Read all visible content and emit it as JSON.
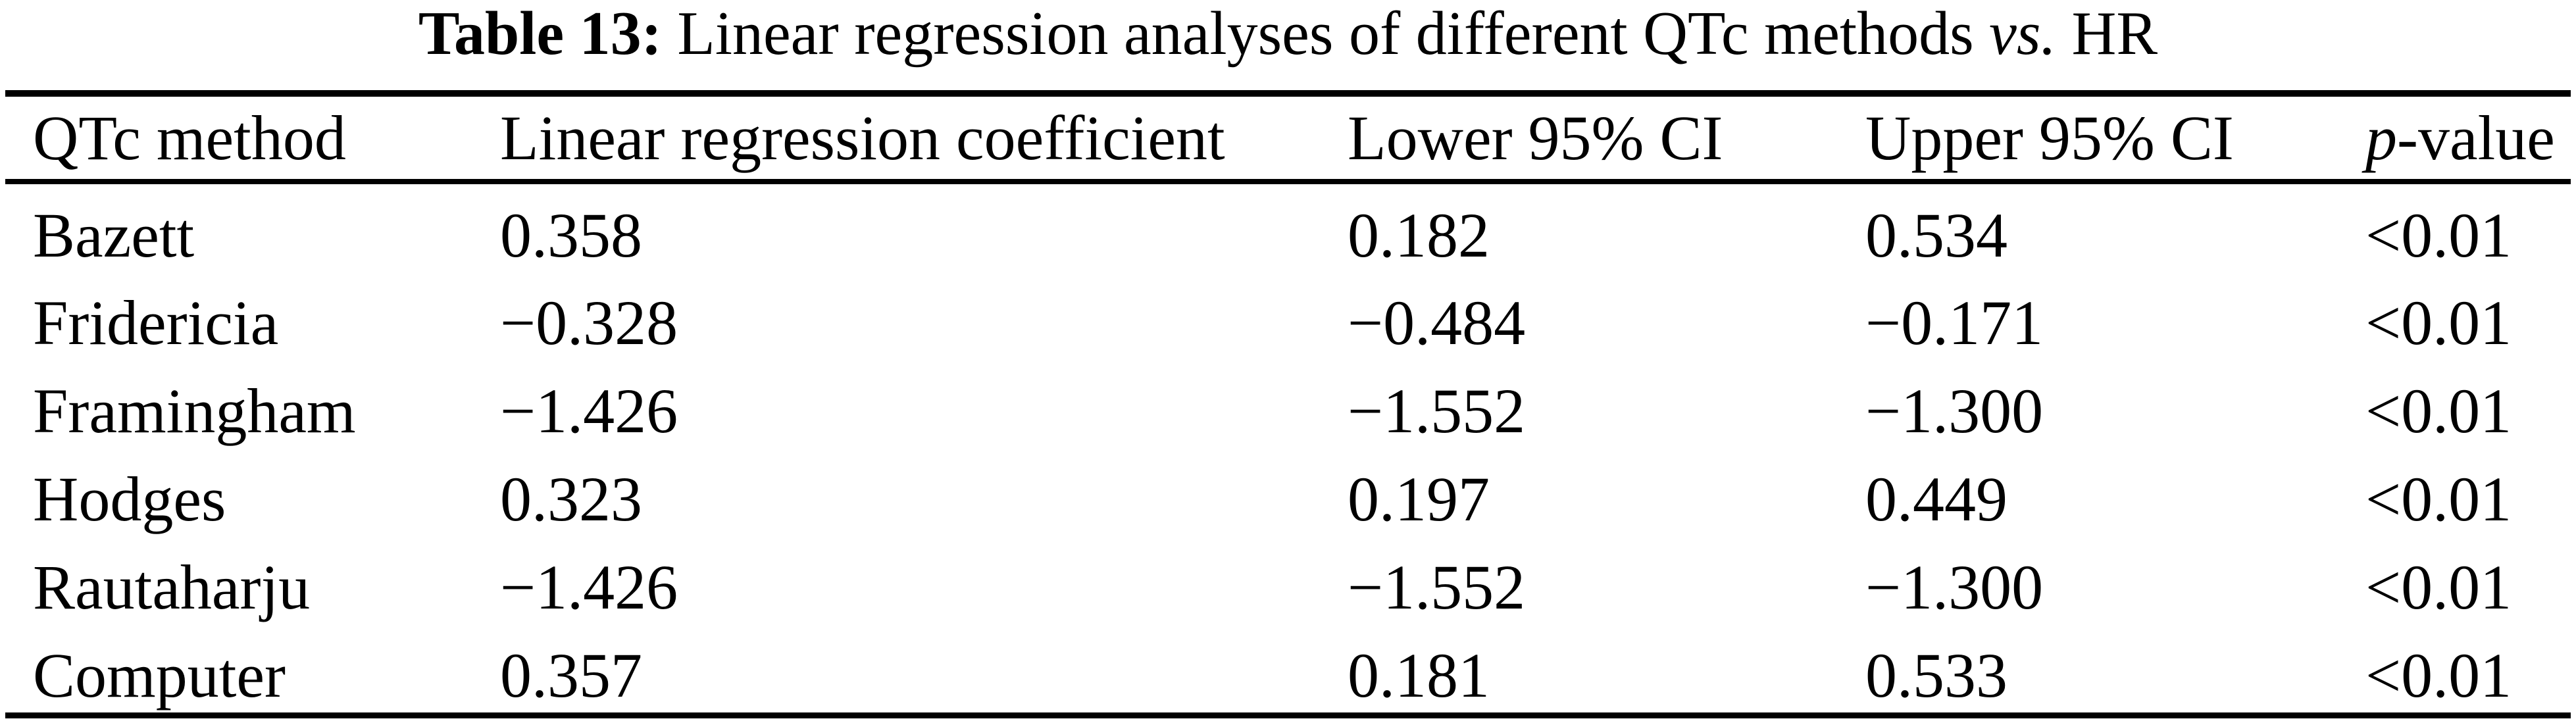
{
  "caption": {
    "label": "Table 13:",
    "text": " Linear regression analyses of different QTc methods ",
    "italic": "vs.",
    "tail": " HR"
  },
  "table": {
    "headers": {
      "method": "QTc method",
      "coefficient": "Linear regression coefficient",
      "lower_ci": "Lower 95% CI",
      "upper_ci": "Upper 95% CI",
      "p_italic": "p",
      "p_rest": "-value"
    },
    "rows": [
      {
        "method": "Bazett",
        "coefficient": "0.358",
        "lower_ci": "0.182",
        "upper_ci": "0.534",
        "p_value": "<0.01"
      },
      {
        "method": "Fridericia",
        "coefficient": "−0.328",
        "lower_ci": "−0.484",
        "upper_ci": "−0.171",
        "p_value": "<0.01"
      },
      {
        "method": "Framingham",
        "coefficient": "−1.426",
        "lower_ci": "−1.552",
        "upper_ci": "−1.300",
        "p_value": "<0.01"
      },
      {
        "method": "Hodges",
        "coefficient": "0.323",
        "lower_ci": "0.197",
        "upper_ci": "0.449",
        "p_value": "<0.01"
      },
      {
        "method": "Rautaharju",
        "coefficient": "−1.426",
        "lower_ci": "−1.552",
        "upper_ci": "−1.300",
        "p_value": "<0.01"
      },
      {
        "method": "Computer",
        "coefficient": "0.357",
        "lower_ci": "0.181",
        "upper_ci": "0.533",
        "p_value": "<0.01"
      }
    ]
  },
  "colors": {
    "text": "#000000",
    "background": "#ffffff",
    "rule": "#000000"
  }
}
